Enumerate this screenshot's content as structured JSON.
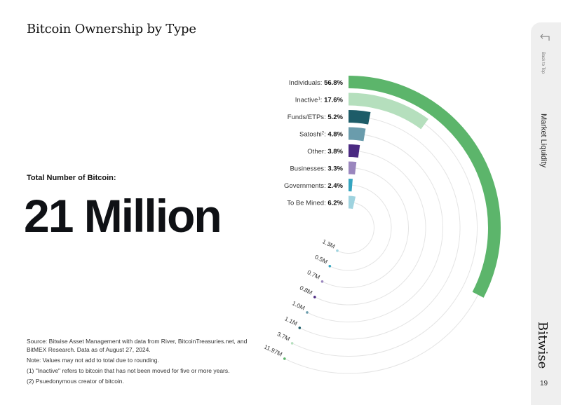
{
  "title": "Bitcoin Ownership by Type",
  "total": {
    "label": "Total Number of Bitcoin:",
    "value": "21 Million"
  },
  "footnotes": {
    "source": "Source: Bitwise Asset Management with data from River, BitcoinTreasuries.net, and BitMEX Research. Data as of August 27, 2024.",
    "note": "Note: Values may not add to total due to rounding.",
    "note1": "(1) \"Inactive\" refers to bitcoin that has not been moved for five or more years.",
    "note2": "(2) Psuedonymous creator of bitcoin."
  },
  "sidebar": {
    "back_label": "Back to Top",
    "section": "Market Liquidity",
    "brand": "Bitwise",
    "page": "19"
  },
  "chart_data": {
    "type": "radial-bar",
    "title": "Bitcoin Ownership by Type",
    "categories": [
      {
        "name": "Individuals",
        "sup": "",
        "percent": "56.8%",
        "value_label": "11.97M",
        "value": 11.97,
        "color": "#5cb56b"
      },
      {
        "name": "Inactive",
        "sup": "1",
        "percent": "17.6%",
        "value_label": "3.7M",
        "value": 3.7,
        "color": "#b5dfbd"
      },
      {
        "name": "Funds/ETPs",
        "sup": "",
        "percent": "5.2%",
        "value_label": "1.1M",
        "value": 1.1,
        "color": "#1d5c68"
      },
      {
        "name": "Satoshi",
        "sup": "2",
        "percent": "4.8%",
        "value_label": "1.0M",
        "value": 1.0,
        "color": "#6a9cac"
      },
      {
        "name": "Other",
        "sup": "",
        "percent": "3.8%",
        "value_label": "0.8M",
        "value": 0.8,
        "color": "#4b2a82"
      },
      {
        "name": "Businesses",
        "sup": "",
        "percent": "3.3%",
        "value_label": "0.7M",
        "value": 0.7,
        "color": "#9a86be"
      },
      {
        "name": "Governments",
        "sup": "",
        "percent": "2.4%",
        "value_label": "0.5M",
        "value": 0.5,
        "color": "#35a5c0"
      },
      {
        "name": "To Be Mined",
        "sup": "",
        "percent": "6.2%",
        "value_label": "1.3M",
        "value": 1.3,
        "color": "#9fd3df"
      }
    ]
  }
}
